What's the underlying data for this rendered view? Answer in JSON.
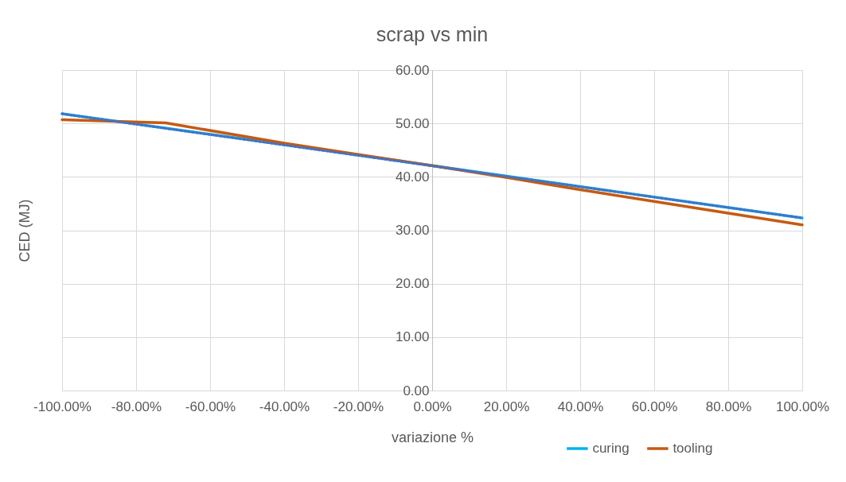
{
  "chart_data": {
    "type": "line",
    "title": "scrap vs min",
    "xlabel": "variazione %",
    "ylabel": "CED (MJ)",
    "xlim": [
      -100,
      100
    ],
    "ylim": [
      0,
      60
    ],
    "xticks": [
      {
        "value": -100,
        "label": "-100.00%"
      },
      {
        "value": -80,
        "label": "-80.00%"
      },
      {
        "value": -60,
        "label": "-60.00%"
      },
      {
        "value": -40,
        "label": "-40.00%"
      },
      {
        "value": -20,
        "label": "-20.00%"
      },
      {
        "value": 0,
        "label": "0.00%"
      },
      {
        "value": 20,
        "label": "20.00%"
      },
      {
        "value": 40,
        "label": "40.00%"
      },
      {
        "value": 60,
        "label": "60.00%"
      },
      {
        "value": 80,
        "label": "80.00%"
      },
      {
        "value": 100,
        "label": "100.00%"
      }
    ],
    "yticks": [
      {
        "value": 0,
        "label": "0.00"
      },
      {
        "value": 10,
        "label": "10.00"
      },
      {
        "value": 20,
        "label": "20.00"
      },
      {
        "value": 30,
        "label": "30.00"
      },
      {
        "value": 40,
        "label": "40.00"
      },
      {
        "value": 50,
        "label": "50.00"
      },
      {
        "value": 60,
        "label": "60.00"
      }
    ],
    "grid": true,
    "legend": "bottom right",
    "series": [
      {
        "name": "curing",
        "color": "#00b0f0",
        "x": [
          -100,
          -50,
          0,
          50,
          100
        ],
        "values": [
          51.8,
          47.0,
          42.1,
          37.2,
          32.3
        ]
      },
      {
        "name": "tooling",
        "color": "#c55a11",
        "x": [
          -100,
          -72,
          -40,
          -20,
          0,
          20,
          40,
          60,
          80,
          100
        ],
        "values": [
          50.7,
          50.1,
          46.3,
          44.2,
          42.1,
          39.9,
          37.6,
          35.4,
          33.2,
          31.0
        ]
      },
      {
        "type": "line",
        "color": "#4472c4",
        "line_style": "dotted",
        "x": [
          -100,
          100
        ],
        "values": [
          51.8,
          32.3
        ]
      }
    ]
  }
}
